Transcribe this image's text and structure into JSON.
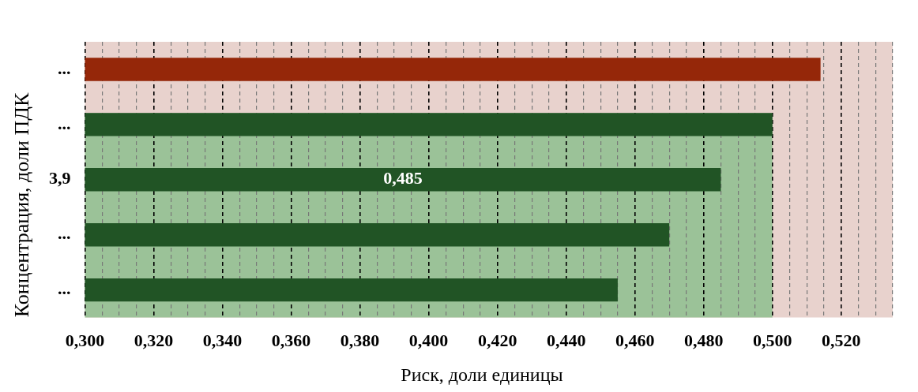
{
  "chart_data": {
    "type": "bar",
    "orientation": "horizontal",
    "xlabel": "Риск, доли единицы",
    "ylabel": "Концентрация, доли ПДК",
    "categories": [
      "...",
      "...",
      "3,9",
      "...",
      "..."
    ],
    "values": [
      0.514,
      0.5,
      0.485,
      0.47,
      0.455
    ],
    "colors": [
      "#952709",
      "#215425",
      "#215425",
      "#215425",
      "#215425"
    ],
    "value_labels": [
      null,
      null,
      "0,485",
      null,
      null
    ],
    "xlim": [
      0.3,
      0.535
    ],
    "xticks": [
      {
        "value": 0.3,
        "label": "0,300"
      },
      {
        "value": 0.305,
        "label": null
      },
      {
        "value": 0.31,
        "label": null
      },
      {
        "value": 0.315,
        "label": null
      },
      {
        "value": 0.32,
        "label": "0,320"
      },
      {
        "value": 0.325,
        "label": null
      },
      {
        "value": 0.33,
        "label": null
      },
      {
        "value": 0.335,
        "label": null
      },
      {
        "value": 0.34,
        "label": "0,340"
      },
      {
        "value": 0.345,
        "label": null
      },
      {
        "value": 0.35,
        "label": null
      },
      {
        "value": 0.355,
        "label": null
      },
      {
        "value": 0.36,
        "label": "0,360"
      },
      {
        "value": 0.365,
        "label": null
      },
      {
        "value": 0.37,
        "label": null
      },
      {
        "value": 0.375,
        "label": null
      },
      {
        "value": 0.38,
        "label": "0,380"
      },
      {
        "value": 0.385,
        "label": null
      },
      {
        "value": 0.39,
        "label": null
      },
      {
        "value": 0.395,
        "label": null
      },
      {
        "value": 0.4,
        "label": "0,400"
      },
      {
        "value": 0.405,
        "label": null
      },
      {
        "value": 0.41,
        "label": null
      },
      {
        "value": 0.415,
        "label": null
      },
      {
        "value": 0.42,
        "label": "0,420"
      },
      {
        "value": 0.425,
        "label": null
      },
      {
        "value": 0.43,
        "label": null
      },
      {
        "value": 0.435,
        "label": null
      },
      {
        "value": 0.44,
        "label": "0,440"
      },
      {
        "value": 0.445,
        "label": null
      },
      {
        "value": 0.45,
        "label": null
      },
      {
        "value": 0.455,
        "label": null
      },
      {
        "value": 0.46,
        "label": "0,460"
      },
      {
        "value": 0.465,
        "label": null
      },
      {
        "value": 0.47,
        "label": null
      },
      {
        "value": 0.475,
        "label": null
      },
      {
        "value": 0.48,
        "label": "0,480"
      },
      {
        "value": 0.485,
        "label": null
      },
      {
        "value": 0.49,
        "label": null
      },
      {
        "value": 0.495,
        "label": null
      },
      {
        "value": 0.5,
        "label": "0,500"
      },
      {
        "value": 0.505,
        "label": null
      },
      {
        "value": 0.51,
        "label": null
      },
      {
        "value": 0.515,
        "label": null
      },
      {
        "value": 0.52,
        "label": "0,520"
      },
      {
        "value": 0.525,
        "label": null
      },
      {
        "value": 0.53,
        "label": null
      },
      {
        "value": 0.535,
        "label": null
      }
    ],
    "bands": [
      {
        "axis": "x",
        "from": 0.3,
        "to": 0.535,
        "color": "#e8d2cd"
      },
      {
        "axis": "x",
        "from": 0.3,
        "to": 0.5,
        "color": "#9bc298"
      }
    ],
    "grid": "x"
  }
}
